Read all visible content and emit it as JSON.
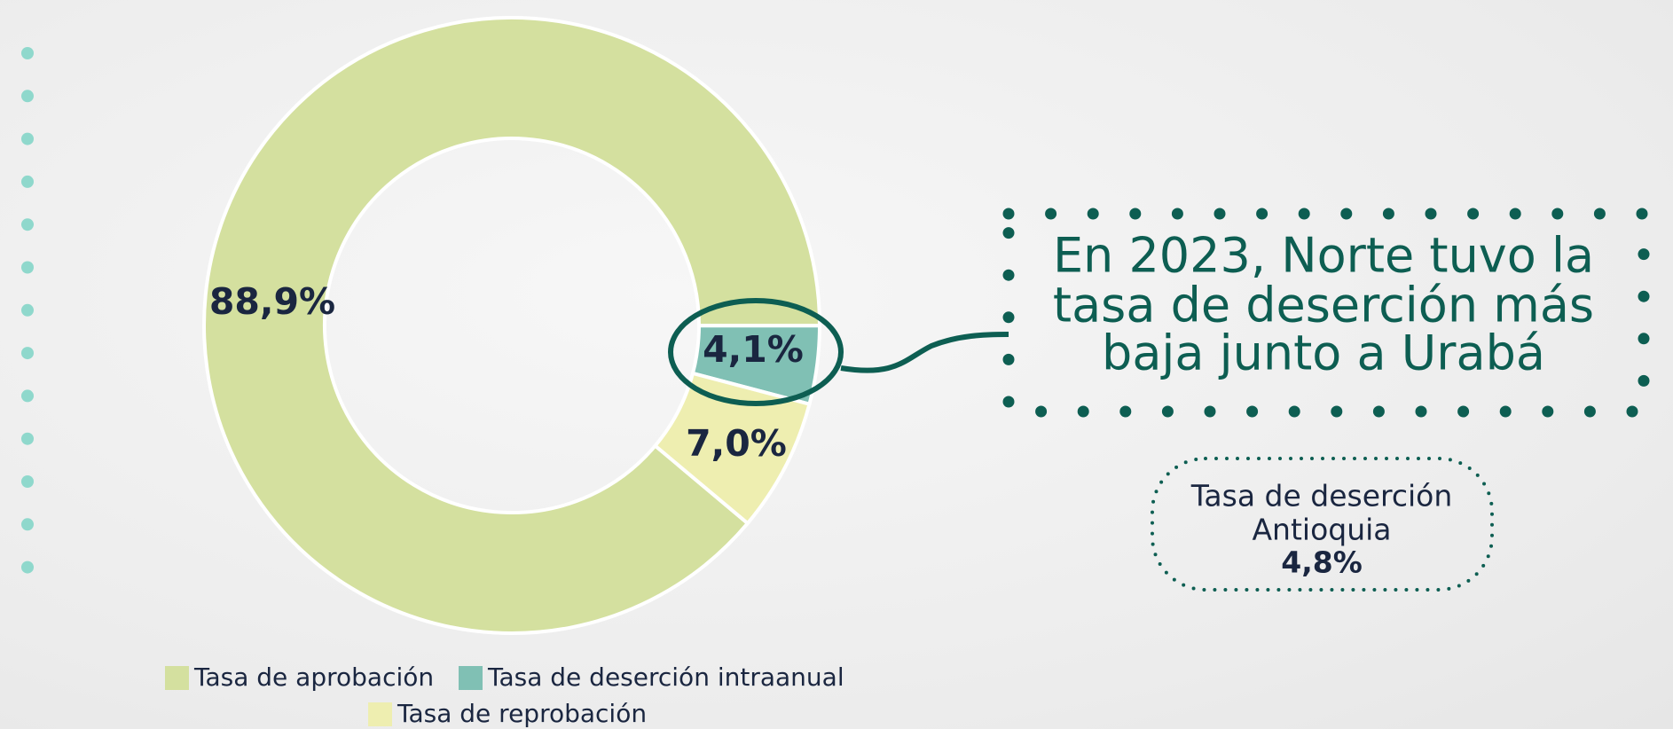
{
  "chart_data": {
    "type": "pie",
    "donut": true,
    "categories": [
      "Tasa de aprobación",
      "Tasa de deserción intraanual",
      "Tasa de reprobación"
    ],
    "values": [
      88.9,
      4.1,
      7.0
    ],
    "value_labels": [
      "88,9%",
      "4,1%",
      "7,0%"
    ],
    "colors": [
      "#d4e09f",
      "#80c0b4",
      "#eeeeb0"
    ],
    "annotation": [
      "En 2023, Norte tuvo la",
      "tasa de deserción más",
      "baja junto a Urabá"
    ],
    "reference": {
      "label": [
        "Tasa de deserción",
        "Antioquia"
      ],
      "value": 4.8,
      "value_label": "4,8%"
    }
  }
}
